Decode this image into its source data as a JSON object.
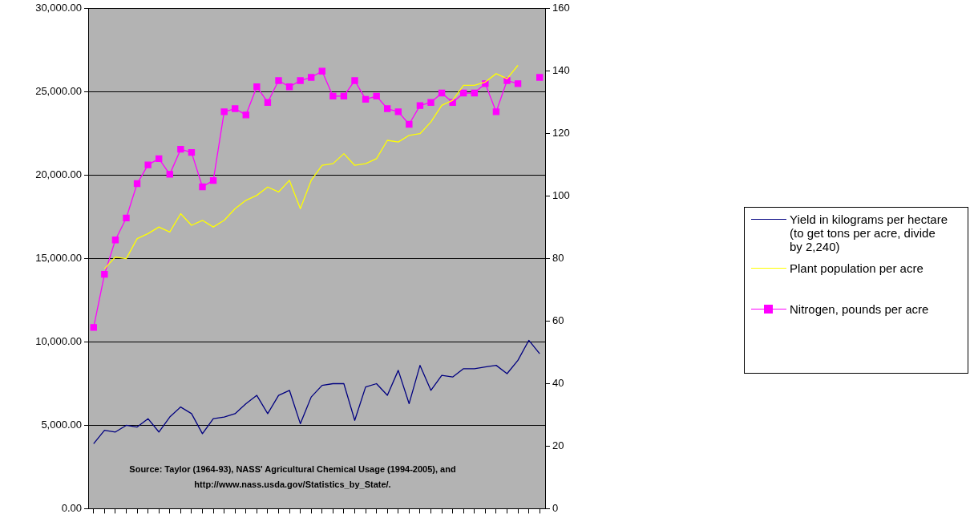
{
  "chart_data": {
    "type": "line",
    "categories": [
      null,
      null,
      null,
      null,
      null,
      null,
      null,
      null,
      null,
      null,
      null,
      null,
      null,
      null,
      null,
      null,
      null,
      null,
      null,
      null,
      null,
      null,
      null,
      null,
      null,
      null,
      null,
      null,
      null,
      null,
      null,
      null,
      null,
      null,
      null,
      null,
      null,
      null,
      null,
      null,
      null,
      null
    ],
    "series": [
      {
        "name": "Yield in kilograms per hectare (to get tons per acre, divide by 2,240)",
        "color": "#000080",
        "marker": "none",
        "values": [
          3900,
          4700,
          4600,
          5000,
          4900,
          5400,
          4600,
          5500,
          6100,
          5700,
          4500,
          5400,
          5500,
          5700,
          6300,
          6800,
          5700,
          6800,
          7100,
          5100,
          6700,
          7400,
          7500,
          7500,
          5300,
          7300,
          7500,
          6800,
          8300,
          6300,
          8600,
          7100,
          8000,
          7900,
          8400,
          8400,
          8500,
          8600,
          8100,
          8900,
          10100,
          9300
        ]
      },
      {
        "name": "Plant population per acre",
        "color": "#ffff00",
        "marker": "none",
        "values": [
          null,
          14400,
          15100,
          15000,
          16200,
          16500,
          16900,
          16600,
          17700,
          17000,
          17300,
          16900,
          17300,
          18000,
          18500,
          18800,
          19300,
          19000,
          19700,
          18000,
          19700,
          20600,
          20700,
          21300,
          20600,
          20700,
          21000,
          22100,
          22000,
          22400,
          22500,
          23200,
          24200,
          24500,
          25400,
          25400,
          25600,
          26100,
          25800,
          26600,
          null,
          null
        ]
      },
      {
        "name": "Nitrogen, pounds per acre",
        "color": "#ff00ff",
        "marker": "square",
        "axis": "y2",
        "values": [
          58,
          75,
          86,
          93,
          104,
          110,
          112,
          107,
          115,
          114,
          103,
          105,
          127,
          128,
          126,
          135,
          130,
          137,
          135,
          137,
          138,
          140,
          132,
          132,
          137,
          131,
          132,
          128,
          127,
          123,
          129,
          130,
          133,
          130,
          133,
          133,
          136,
          127,
          137,
          136,
          null,
          138
        ]
      }
    ],
    "ylim": [
      0,
      30000
    ],
    "yticks": [
      {
        "value": 0,
        "label": "0.00"
      },
      {
        "value": 5000,
        "label": "5,000.00"
      },
      {
        "value": 10000,
        "label": "10,000.00"
      },
      {
        "value": 15000,
        "label": "15,000.00"
      },
      {
        "value": 20000,
        "label": "20,000.00"
      },
      {
        "value": 25000,
        "label": "25,000.00"
      },
      {
        "value": 30000,
        "label": "30,000.00"
      }
    ],
    "y2lim": [
      0,
      160
    ],
    "y2ticks": [
      0,
      20,
      40,
      60,
      80,
      100,
      120,
      140,
      160
    ],
    "grid": "y",
    "legend": "right",
    "annotations": [
      "Source: Taylor (1964-93), NASS' Agricultural Chemical Usage (1994-2005), and http://www.nass.usda.gov/Statistics_by_State/."
    ]
  }
}
